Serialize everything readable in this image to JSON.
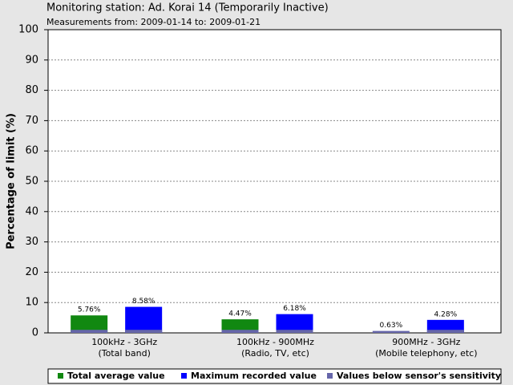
{
  "chart_data": {
    "type": "bar",
    "title": "Monitoring station: Ad. Korai 14 (Temporarily Inactive)",
    "subtitle": "Measurements from: 2009-01-14 to: 2009-01-21",
    "y_label": "Percentage of limit (%)",
    "categories": [
      [
        "100kHz - 3GHz",
        "(Total band)"
      ],
      [
        "100kHz - 900MHz",
        "(Radio, TV, etc)"
      ],
      [
        "900MHz - 3GHz",
        "(Mobile telephony, etc)"
      ]
    ],
    "series": [
      {
        "name": "Total average value",
        "color": "#118811",
        "values": [
          5.76,
          4.47,
          0.63
        ],
        "value_labels": [
          "5.76%",
          "4.47%",
          "0.63%"
        ]
      },
      {
        "name": "Maximum recorded value",
        "color": "#0000ff",
        "values": [
          8.58,
          6.18,
          4.28
        ],
        "value_labels": [
          "8.58%",
          "6.18%",
          "4.28%"
        ]
      }
    ],
    "sensitivity": {
      "name": "Values below sensor's sensitivity",
      "color": "#6666aa",
      "level": 1
    },
    "ylim": [
      0,
      100
    ],
    "yticks": [
      0,
      10,
      20,
      30,
      40,
      50,
      60,
      70,
      80,
      90,
      100
    ],
    "grid": true
  }
}
